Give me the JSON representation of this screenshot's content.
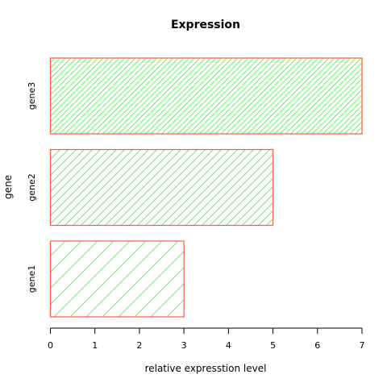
{
  "chart_data": {
    "type": "bar",
    "orientation": "horizontal",
    "title": "Expression",
    "xlabel": "relative expresstion level",
    "ylabel": "gene",
    "categories": [
      "gene1",
      "gene2",
      "gene3"
    ],
    "values": [
      3,
      5,
      7
    ],
    "xlim": [
      0,
      7
    ],
    "xticks": [
      0,
      1,
      2,
      3,
      4,
      5,
      6,
      7
    ],
    "grid": false,
    "bar_border_color": "#FF5A4A",
    "hatch_color": "#5CF55C",
    "hatch_density": [
      10,
      20,
      30
    ]
  }
}
